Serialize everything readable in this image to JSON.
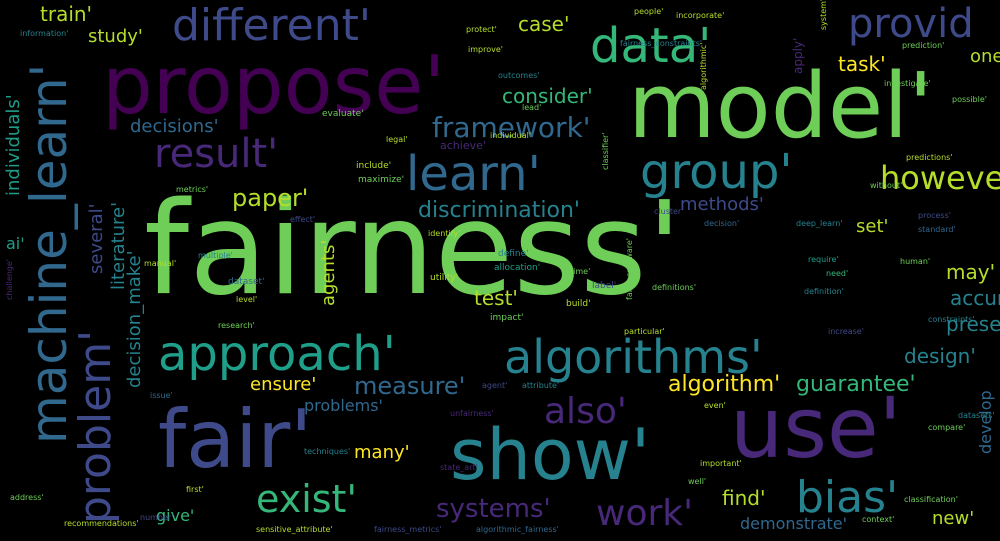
{
  "colors": {
    "background": "#000000",
    "palette": [
      "#440154",
      "#482878",
      "#3e4a89",
      "#31688e",
      "#26828e",
      "#1f9e89",
      "#35b779",
      "#6ece58",
      "#b5de2b",
      "#fde725"
    ]
  },
  "words": {
    "fairness": "fairness'",
    "model": "model'",
    "propose": "propose'",
    "use": "use'",
    "fair": "fair'",
    "show": "show'",
    "machine_learn": "machine_learn'",
    "approach": "approach'",
    "algorithms": "algorithms'",
    "data": "data'",
    "learn": "learn'",
    "group": "group'",
    "result": "result'",
    "different": "different'",
    "provide": "provid",
    "problem": "problem'",
    "bias": "bias'",
    "exist": "exist'",
    "work": "work'",
    "also": "also'",
    "systems": "systems'",
    "framework": "framework'",
    "however": "howeve",
    "paper": "paper'",
    "discrimination": "discrimination'",
    "measure": "measure'",
    "algorithm": "algorithm'",
    "guarantee": "guarantee'",
    "individuals": "individuals'",
    "several": "several'",
    "literature": "literature'",
    "decision_make": "decision_make'",
    "train": "train'",
    "study": "study'",
    "case": "case'",
    "consider": "consider'",
    "decisions": "decisions'",
    "task": "task'",
    "methods": "methods'",
    "set": "set'",
    "may": "may'",
    "accuracy": "accura",
    "present": "prese",
    "design": "design'",
    "develop": "develop",
    "test": "test'",
    "agents": "agents'",
    "ensure": "ensure'",
    "problems": "problems'",
    "many": "many'",
    "find": "find'",
    "give": "give'",
    "demonstrate": "demonstrate'",
    "new": "new'",
    "one": "one",
    "ai": "ai'",
    "apply": "apply'",
    "achieve": "achieve'",
    "evaluate": "evaluate'",
    "include": "include'",
    "maximize": "maximize'",
    "dataset": "dataset'",
    "utility": "utility'",
    "allocation": "allocation'",
    "impact": "impact'",
    "define": "define'",
    "label": "label'",
    "build": "build'",
    "cluster": "cluster'",
    "decision": "decision'",
    "definitions": "definitions'",
    "definition": "definition'",
    "require": "require'",
    "need": "need'",
    "human": "human'",
    "process": "process'",
    "standard": "standard'",
    "predictions": "predictions'",
    "prediction": "prediction'",
    "possible": "possible'",
    "unfairness": "unfairness'",
    "fairness_constraints": "fairness_constraints'",
    "fairness_metrics": "fairness_metrics'",
    "algorithmic_fairness": "algorithmic_fairness'",
    "sensitive_attribute": "sensitive_attribute'",
    "incorporate": "incorporate'",
    "people": "people'",
    "information": "information'",
    "improve": "improve'",
    "outcomes": "outcomes'",
    "legal": "legal'",
    "individual": "individual'",
    "research": "research'",
    "multiple": "multiple'",
    "level": "level'",
    "number": "number'",
    "recommendations": "recommendations'",
    "challenge": "challenge'",
    "important": "important'",
    "well": "well'",
    "even": "even'",
    "increase": "increase'",
    "particular": "particular'",
    "compare": "compare'",
    "classification": "classification'",
    "context": "context'",
    "deep_learn": "deep_learn'",
    "metrics": "metrics'",
    "effect": "effect'",
    "identify": "identify'",
    "state_art": "state_art'",
    "techniques": "techniques'",
    "investigate": "investigate'",
    "without": "without'",
    "lead": "lead'",
    "protect": "protect'",
    "classifier": "classifier'",
    "algorithmic": "algorithmic'",
    "system": "system'",
    "issue": "issue'",
    "agent": "agent'",
    "time": "time'",
    "attribute": "attribute'",
    "fairness_aware": "fairness_aware'",
    "manual": "manual'",
    "address": "address'",
    "constraints": "constraints'",
    "datasets": "datasets'",
    "first": "first'"
  }
}
